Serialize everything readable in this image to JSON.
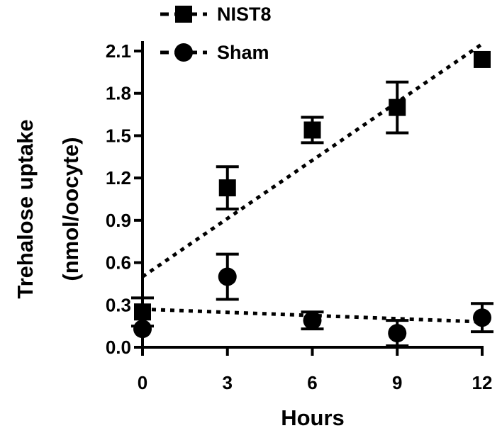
{
  "chart_data": {
    "type": "scatter",
    "xlabel": "Hours",
    "ylabel_lines": [
      "Trehalose uptake",
      "(nmol/oocyte)"
    ],
    "x_ticks": [
      "0",
      "3",
      "6",
      "9",
      "12"
    ],
    "y_ticks": [
      "0.0",
      "0.3",
      "0.6",
      "0.9",
      "1.2",
      "1.5",
      "1.8",
      "2.1"
    ],
    "xlim": [
      0,
      12
    ],
    "ylim": [
      0,
      2.1
    ],
    "legend_position": "top-left",
    "series": [
      {
        "name": "NIST8",
        "marker": "square",
        "points": [
          {
            "x": 0,
            "y": 0.25,
            "err": 0.1
          },
          {
            "x": 3,
            "y": 1.13,
            "err": 0.15
          },
          {
            "x": 6,
            "y": 1.54,
            "err": 0.09
          },
          {
            "x": 9,
            "y": 1.7,
            "err": 0.18
          },
          {
            "x": 12,
            "y": 2.04,
            "err": 0
          }
        ],
        "trend": {
          "x0": 0,
          "y0": 0.5,
          "x1": 12,
          "y1": 2.15
        }
      },
      {
        "name": "Sham",
        "marker": "circle",
        "points": [
          {
            "x": 0,
            "y": 0.13,
            "err": 0
          },
          {
            "x": 3,
            "y": 0.5,
            "err": 0.16
          },
          {
            "x": 6,
            "y": 0.19,
            "err": 0.06
          },
          {
            "x": 9,
            "y": 0.1,
            "err": 0.09
          },
          {
            "x": 12,
            "y": 0.21,
            "err": 0.1
          }
        ],
        "trend": {
          "x0": 0,
          "y0": 0.27,
          "x1": 12,
          "y1": 0.18
        }
      }
    ]
  }
}
